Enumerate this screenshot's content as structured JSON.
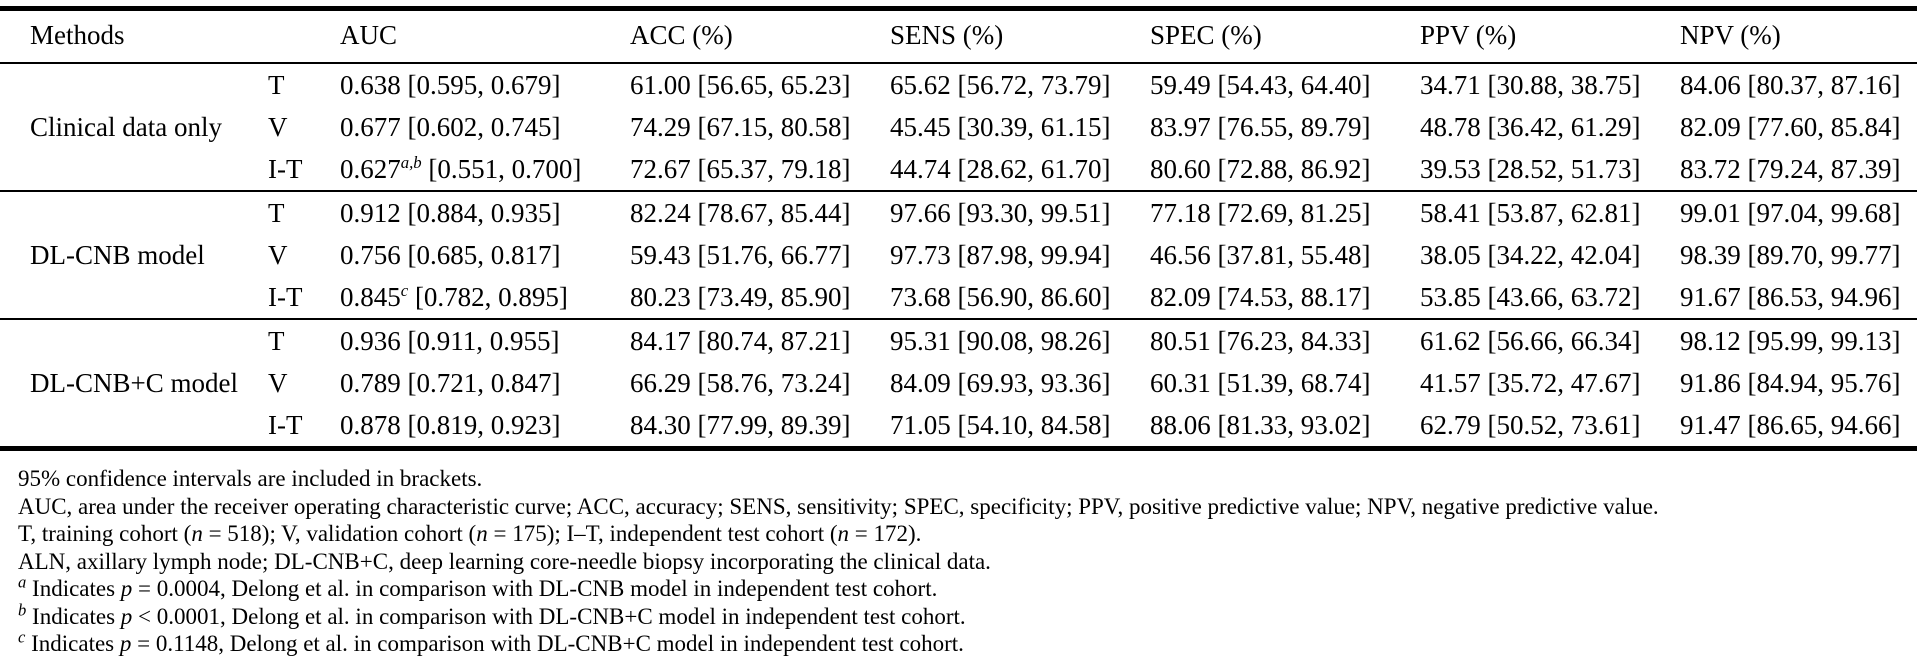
{
  "table": {
    "headers": [
      "Methods",
      "AUC",
      "ACC (%)",
      "SENS (%)",
      "SPEC (%)",
      "PPV (%)",
      "NPV (%)"
    ],
    "groups": [
      {
        "method": "Clinical data only",
        "rows": [
          {
            "cohort": "T",
            "auc": {
              "value": "0.638",
              "sup": "",
              "ci": "[0.595, 0.679]"
            },
            "acc": "61.00 [56.65, 65.23]",
            "sens": "65.62 [56.72, 73.79]",
            "spec": "59.49 [54.43, 64.40]",
            "ppv": "34.71 [30.88, 38.75]",
            "npv": "84.06 [80.37, 87.16]"
          },
          {
            "cohort": "V",
            "auc": {
              "value": "0.677",
              "sup": "",
              "ci": "[0.602, 0.745]"
            },
            "acc": "74.29 [67.15, 80.58]",
            "sens": "45.45 [30.39, 61.15]",
            "spec": "83.97 [76.55, 89.79]",
            "ppv": "48.78 [36.42, 61.29]",
            "npv": "82.09 [77.60, 85.84]"
          },
          {
            "cohort": "I-T",
            "auc": {
              "value": "0.627",
              "sup": "a,b",
              "ci": "[0.551, 0.700]"
            },
            "acc": "72.67 [65.37, 79.18]",
            "sens": "44.74 [28.62, 61.70]",
            "spec": "80.60 [72.88, 86.92]",
            "ppv": "39.53 [28.52, 51.73]",
            "npv": "83.72 [79.24, 87.39]"
          }
        ]
      },
      {
        "method": "DL-CNB model",
        "rows": [
          {
            "cohort": "T",
            "auc": {
              "value": "0.912",
              "sup": "",
              "ci": "[0.884, 0.935]"
            },
            "acc": "82.24 [78.67, 85.44]",
            "sens": "97.66 [93.30, 99.51]",
            "spec": "77.18 [72.69, 81.25]",
            "ppv": "58.41 [53.87, 62.81]",
            "npv": "99.01 [97.04, 99.68]"
          },
          {
            "cohort": "V",
            "auc": {
              "value": "0.756",
              "sup": "",
              "ci": "[0.685, 0.817]"
            },
            "acc": "59.43 [51.76, 66.77]",
            "sens": "97.73 [87.98, 99.94]",
            "spec": "46.56 [37.81, 55.48]",
            "ppv": "38.05 [34.22, 42.04]",
            "npv": "98.39 [89.70, 99.77]"
          },
          {
            "cohort": "I-T",
            "auc": {
              "value": "0.845",
              "sup": "c",
              "ci": "[0.782, 0.895]"
            },
            "acc": "80.23 [73.49, 85.90]",
            "sens": "73.68 [56.90, 86.60]",
            "spec": "82.09 [74.53, 88.17]",
            "ppv": "53.85 [43.66, 63.72]",
            "npv": "91.67 [86.53, 94.96]"
          }
        ]
      },
      {
        "method": "DL-CNB+C model",
        "rows": [
          {
            "cohort": "T",
            "auc": {
              "value": "0.936",
              "sup": "",
              "ci": "[0.911, 0.955]"
            },
            "acc": "84.17 [80.74, 87.21]",
            "sens": "95.31 [90.08, 98.26]",
            "spec": "80.51 [76.23, 84.33]",
            "ppv": "61.62 [56.66, 66.34]",
            "npv": "98.12 [95.99, 99.13]"
          },
          {
            "cohort": "V",
            "auc": {
              "value": "0.789",
              "sup": "",
              "ci": "[0.721, 0.847]"
            },
            "acc": "66.29 [58.76, 73.24]",
            "sens": "84.09 [69.93, 93.36]",
            "spec": "60.31 [51.39, 68.74]",
            "ppv": "41.57 [35.72, 47.67]",
            "npv": "91.86 [84.94, 95.76]"
          },
          {
            "cohort": "I-T",
            "auc": {
              "value": "0.878",
              "sup": "",
              "ci": "[0.819, 0.923]"
            },
            "acc": "84.30 [77.99, 89.39]",
            "sens": "71.05 [54.10, 84.58]",
            "spec": "88.06 [81.33, 93.02]",
            "ppv": "62.79 [50.52, 73.61]",
            "npv": "91.47 [86.65, 94.66]"
          }
        ]
      }
    ]
  },
  "footnotes": [
    {
      "parts": [
        {
          "text": "95% confidence intervals are included in brackets."
        }
      ]
    },
    {
      "parts": [
        {
          "text": "AUC, area under the receiver operating characteristic curve; ACC, accuracy; SENS, sensitivity; SPEC, specificity; PPV, positive predictive value; NPV, negative predictive value."
        }
      ]
    },
    {
      "parts": [
        {
          "text": "T, training cohort ("
        },
        {
          "text": "n",
          "italic": true
        },
        {
          "text": " = 518); V, validation cohort ("
        },
        {
          "text": "n",
          "italic": true
        },
        {
          "text": " = 175); I–T, independent test cohort ("
        },
        {
          "text": "n",
          "italic": true
        },
        {
          "text": " = 172)."
        }
      ]
    },
    {
      "parts": [
        {
          "text": "ALN, axillary lymph node; DL-CNB+C, deep learning core-needle biopsy incorporating the clinical data."
        }
      ]
    },
    {
      "parts": [
        {
          "text": "a",
          "sup": true
        },
        {
          "text": " Indicates "
        },
        {
          "text": "p",
          "italic": true
        },
        {
          "text": " = 0.0004, Delong et al. in comparison with DL-CNB model in independent test cohort."
        }
      ]
    },
    {
      "parts": [
        {
          "text": "b",
          "sup": true
        },
        {
          "text": " Indicates "
        },
        {
          "text": "p",
          "italic": true
        },
        {
          "text": " < 0.0001, Delong et al. in comparison with DL-CNB+C model in independent test cohort."
        }
      ]
    },
    {
      "parts": [
        {
          "text": "c",
          "sup": true
        },
        {
          "text": " Indicates "
        },
        {
          "text": "p",
          "italic": true
        },
        {
          "text": " = 0.1148, Delong et al. in comparison with DL-CNB+C model in independent test cohort."
        }
      ]
    }
  ]
}
